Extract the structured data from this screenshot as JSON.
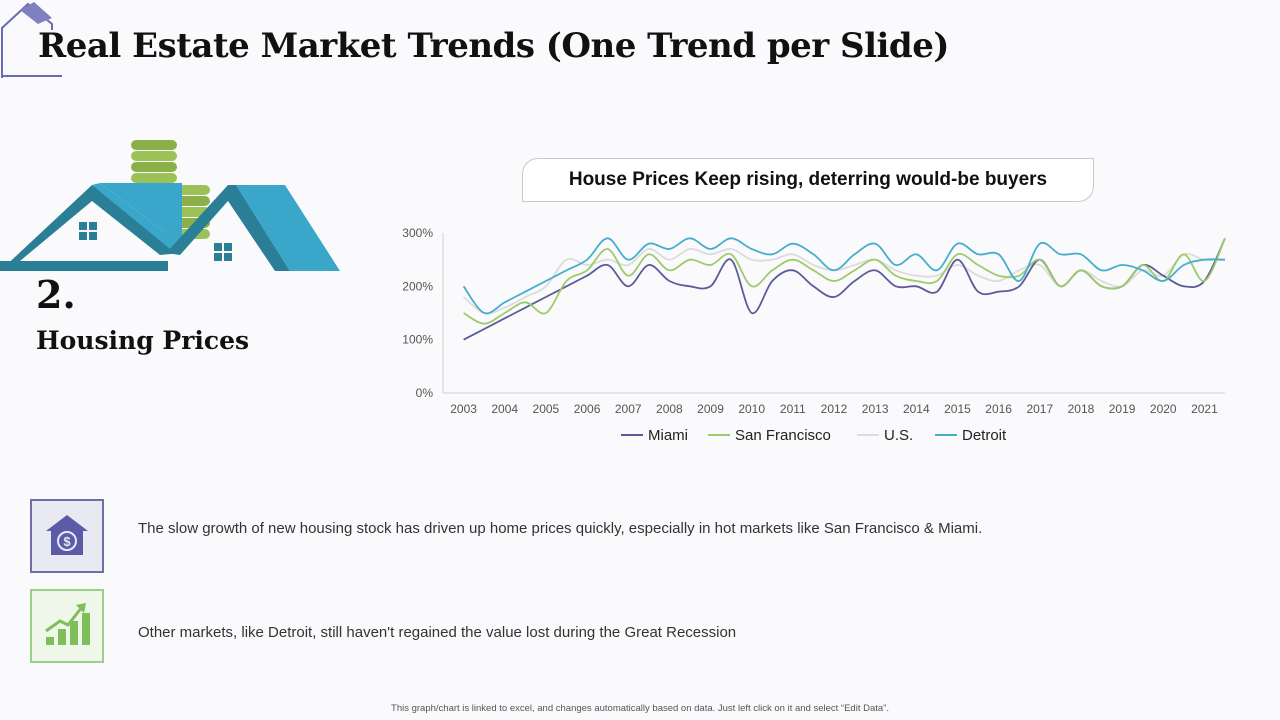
{
  "slide": {
    "title": "Real Estate Market Trends (One Trend per Slide)",
    "trend_number": "2.",
    "trend_name": "Housing Prices",
    "chart_heading": "House Prices Keep rising, deterring would-be buyers",
    "footer": "This graph/chart is linked to excel, and changes automatically based on data. Just left click on it and select “Edit Data”."
  },
  "notes": [
    {
      "text": "The slow growth of new housing stock has driven up home prices quickly, especially in hot markets like San Francisco & Miami.",
      "icon": "house-dollar-icon"
    },
    {
      "text": "Other markets, like Detroit, still haven't regained the value lost during the Great Recession",
      "icon": "growth-chart-icon"
    }
  ],
  "colors": {
    "accent_blue": "#3aa6c9",
    "house_teal": "#2a7f97",
    "coin_green": "#8bb04a",
    "miami": "#5b5b9a",
    "san_francisco": "#9ccc6a",
    "us": "#dcdcdc",
    "detroit": "#45aecf"
  },
  "chart_data": {
    "type": "line",
    "title": "House Prices Keep rising, deterring would-be buyers",
    "xlabel": "",
    "ylabel": "",
    "ylim": [
      0,
      300
    ],
    "y_ticks": [
      "0%",
      "100%",
      "200%",
      "300%"
    ],
    "y_tick_values": [
      0,
      100,
      200,
      300
    ],
    "x_labels": [
      "2003",
      "2004",
      "2005",
      "2006",
      "2007",
      "2008",
      "2009",
      "2010",
      "2011",
      "2012",
      "2013",
      "2014",
      "2015",
      "2016",
      "2017",
      "2018",
      "2019",
      "2020",
      "2021"
    ],
    "x": [
      2003,
      2003.5,
      2004,
      2004.5,
      2005,
      2005.5,
      2006,
      2006.5,
      2007,
      2007.5,
      2008,
      2008.5,
      2009,
      2009.5,
      2010,
      2010.5,
      2011,
      2011.5,
      2012,
      2012.5,
      2013,
      2013.5,
      2014,
      2014.5,
      2015,
      2015.5,
      2016,
      2016.5,
      2017,
      2017.5,
      2018,
      2018.5,
      2019,
      2019.5,
      2020,
      2020.5,
      2021,
      2021.5
    ],
    "legend_position": "bottom",
    "grid": false,
    "series": [
      {
        "name": "Miami",
        "values": [
          100,
          120,
          140,
          160,
          180,
          200,
          220,
          240,
          200,
          240,
          210,
          200,
          200,
          250,
          150,
          210,
          230,
          200,
          180,
          210,
          230,
          200,
          200,
          190,
          250,
          190,
          190,
          200,
          250,
          200,
          230,
          200,
          200,
          240,
          220,
          200,
          210,
          290
        ]
      },
      {
        "name": "San Francisco",
        "values": [
          150,
          130,
          150,
          170,
          150,
          210,
          230,
          270,
          220,
          260,
          230,
          250,
          240,
          260,
          200,
          230,
          250,
          230,
          210,
          230,
          250,
          220,
          210,
          210,
          260,
          240,
          220,
          220,
          250,
          200,
          230,
          200,
          200,
          240,
          210,
          260,
          210,
          290
        ]
      },
      {
        "name": "U.S.",
        "values": [
          180,
          150,
          160,
          180,
          200,
          250,
          240,
          250,
          240,
          270,
          250,
          270,
          260,
          270,
          250,
          250,
          260,
          240,
          230,
          240,
          250,
          230,
          220,
          220,
          240,
          220,
          210,
          230,
          240,
          200,
          230,
          210,
          200,
          230,
          220,
          260,
          250,
          250
        ]
      },
      {
        "name": "Detroit",
        "values": [
          200,
          150,
          170,
          190,
          210,
          230,
          250,
          290,
          250,
          280,
          270,
          290,
          270,
          290,
          270,
          260,
          280,
          260,
          230,
          260,
          280,
          240,
          260,
          230,
          280,
          260,
          260,
          210,
          280,
          260,
          260,
          230,
          240,
          230,
          210,
          240,
          250,
          250
        ]
      }
    ]
  }
}
